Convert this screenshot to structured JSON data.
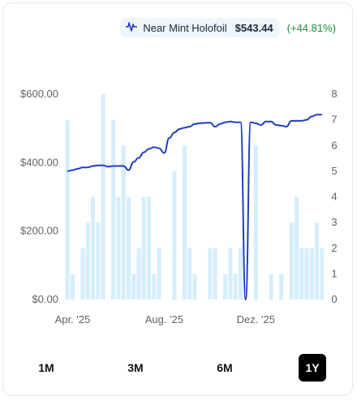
{
  "legend": {
    "icon": "price-line-icon",
    "label": "Near Mint Holofoil",
    "price": "$543.44",
    "change": "(+44.81%)",
    "change_color": "#1f8a3a"
  },
  "colors": {
    "line": "#1e3fbf",
    "bars": "#d6eefb",
    "active_tab_bg": "#000000"
  },
  "timeframes": [
    {
      "label": "1M",
      "active": false
    },
    {
      "label": "3M",
      "active": false
    },
    {
      "label": "6M",
      "active": false
    },
    {
      "label": "1Y",
      "active": true
    }
  ],
  "chart_data": {
    "type": "bar+line",
    "left_axis": {
      "ticks": [
        "$0.00",
        "$200.00",
        "$400.00",
        "$600.00"
      ],
      "values": [
        0,
        200,
        400,
        600
      ],
      "ylim": [
        0,
        600
      ]
    },
    "right_axis": {
      "ticks": [
        "0",
        "1",
        "2",
        "3",
        "4",
        "5",
        "6",
        "7",
        "8"
      ],
      "values": [
        0,
        1,
        2,
        3,
        4,
        5,
        6,
        7,
        8
      ],
      "ylim": [
        0,
        8
      ]
    },
    "x_ticks": [
      {
        "label": "Apr. '25",
        "index": 1
      },
      {
        "label": "Aug. '25",
        "index": 19
      },
      {
        "label": "Dez. '25",
        "index": 37
      }
    ],
    "bar_series": {
      "name": "",
      "values": [
        7,
        1,
        0,
        2,
        3,
        4,
        3,
        8,
        0,
        7,
        4,
        6,
        4,
        1,
        2,
        4,
        4,
        1,
        2,
        0,
        0,
        5,
        0,
        6,
        2,
        1,
        0,
        0,
        2,
        2,
        0,
        1,
        2,
        1,
        2,
        0,
        0,
        6,
        0,
        0,
        1,
        0,
        1,
        0,
        3,
        4,
        2,
        2,
        2,
        3,
        2
      ]
    },
    "line_series": {
      "name": "Near Mint Holofoil",
      "values": [
        375,
        378,
        382,
        386,
        386,
        390,
        392,
        392,
        388,
        390,
        390,
        390,
        378,
        402,
        414,
        430,
        440,
        445,
        442,
        428,
        472,
        488,
        498,
        502,
        505,
        513,
        515,
        516,
        517,
        505,
        513,
        518,
        520,
        518,
        518,
        0,
        518,
        515,
        510,
        520,
        520,
        510,
        508,
        505,
        522,
        522,
        522,
        525,
        535,
        540,
        540
      ]
    },
    "grid": false
  }
}
